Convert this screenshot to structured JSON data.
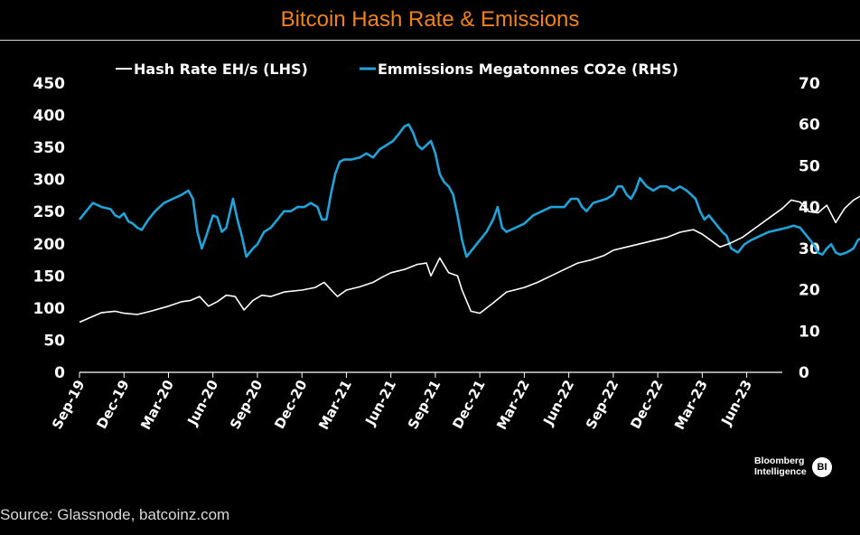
{
  "chart_data": {
    "type": "line",
    "title": "Bitcoin Hash Rate & Emissions",
    "source": "Source: Glassnode, batcoinz.com",
    "brand": {
      "line1": "Bloomberg",
      "line2": "Intelligence",
      "badge": "BI"
    },
    "x_tick_labels": [
      "Sep-19",
      "Dec-19",
      "Mar-20",
      "Jun-20",
      "Sep-20",
      "Dec-20",
      "Mar-21",
      "Jun-21",
      "Sep-21",
      "Dec-21",
      "Mar-22",
      "Jun-22",
      "Sep-22",
      "Dec-22",
      "Mar-23",
      "Jun-23"
    ],
    "y_left": {
      "ticks": [
        "0",
        "50",
        "100",
        "150",
        "200",
        "250",
        "300",
        "350",
        "400",
        "450"
      ],
      "lim": [
        0,
        450
      ]
    },
    "y_right": {
      "ticks": [
        "0",
        "10",
        "20",
        "30",
        "40",
        "50",
        "60",
        "70"
      ],
      "lim": [
        0,
        70
      ]
    },
    "grid": false,
    "legend_placement": "top",
    "colors": {
      "hash": "#ffffff",
      "emissions": "#1fa3d8",
      "title": "#f0821e"
    },
    "series": [
      {
        "name": "Hash Rate EH/s (LHS)",
        "axis": "left",
        "points": [
          [
            0,
            78
          ],
          [
            0.3,
            87
          ],
          [
            0.5,
            93
          ],
          [
            0.8,
            95
          ],
          [
            1,
            92
          ],
          [
            1.3,
            90
          ],
          [
            1.6,
            95
          ],
          [
            2,
            103
          ],
          [
            2.3,
            110
          ],
          [
            2.5,
            112
          ],
          [
            2.7,
            118
          ],
          [
            2.9,
            103
          ],
          [
            3.1,
            110
          ],
          [
            3.3,
            120
          ],
          [
            3.5,
            118
          ],
          [
            3.7,
            97
          ],
          [
            3.9,
            112
          ],
          [
            4.1,
            120
          ],
          [
            4.3,
            118
          ],
          [
            4.6,
            125
          ],
          [
            5,
            128
          ],
          [
            5.3,
            132
          ],
          [
            5.5,
            140
          ],
          [
            5.7,
            125
          ],
          [
            5.8,
            118
          ],
          [
            6,
            128
          ],
          [
            6.3,
            133
          ],
          [
            6.6,
            140
          ],
          [
            6.8,
            148
          ],
          [
            7,
            155
          ],
          [
            7.3,
            160
          ],
          [
            7.6,
            168
          ],
          [
            7.8,
            170
          ],
          [
            7.9,
            150
          ],
          [
            8.1,
            178
          ],
          [
            8.3,
            155
          ],
          [
            8.5,
            150
          ],
          [
            8.6,
            128
          ],
          [
            8.8,
            95
          ],
          [
            9,
            92
          ],
          [
            9.3,
            108
          ],
          [
            9.6,
            125
          ],
          [
            10,
            132
          ],
          [
            10.3,
            140
          ],
          [
            10.6,
            150
          ],
          [
            10.9,
            160
          ],
          [
            11.2,
            170
          ],
          [
            11.5,
            175
          ],
          [
            11.8,
            182
          ],
          [
            12,
            190
          ],
          [
            12.3,
            195
          ],
          [
            12.6,
            200
          ],
          [
            12.9,
            205
          ],
          [
            13.2,
            210
          ],
          [
            13.5,
            218
          ],
          [
            13.8,
            222
          ],
          [
            14,
            215
          ],
          [
            14.2,
            205
          ],
          [
            14.4,
            195
          ],
          [
            14.6,
            200
          ],
          [
            14.9,
            210
          ],
          [
            15.2,
            225
          ],
          [
            15.5,
            240
          ],
          [
            15.8,
            255
          ],
          [
            16,
            268
          ],
          [
            16.2,
            265
          ],
          [
            16.4,
            250
          ],
          [
            16.6,
            248
          ],
          [
            16.8,
            260
          ],
          [
            17,
            233
          ],
          [
            17.2,
            255
          ],
          [
            17.4,
            268
          ],
          [
            17.7,
            280
          ],
          [
            18,
            295
          ],
          [
            18.3,
            305
          ],
          [
            18.6,
            325
          ],
          [
            18.9,
            340
          ],
          [
            19.2,
            350
          ],
          [
            19.5,
            362
          ],
          [
            19.8,
            372
          ],
          [
            20.1,
            380
          ],
          [
            20.3,
            370
          ],
          [
            20.5,
            382
          ],
          [
            20.6,
            388
          ],
          [
            20.7,
            372
          ],
          [
            20.8,
            375
          ]
        ]
      },
      {
        "name": "Emmissions Megatonnes CO2e (RHS)",
        "axis": "right",
        "points": [
          [
            0,
            37
          ],
          [
            0.15,
            39
          ],
          [
            0.3,
            41
          ],
          [
            0.5,
            40
          ],
          [
            0.7,
            39.5
          ],
          [
            0.8,
            38
          ],
          [
            0.9,
            37.5
          ],
          [
            1,
            38.5
          ],
          [
            1.1,
            36.5
          ],
          [
            1.2,
            36
          ],
          [
            1.3,
            35
          ],
          [
            1.4,
            34.5
          ],
          [
            1.55,
            37
          ],
          [
            1.7,
            39
          ],
          [
            1.9,
            41
          ],
          [
            2.1,
            42
          ],
          [
            2.3,
            43
          ],
          [
            2.45,
            44
          ],
          [
            2.55,
            42
          ],
          [
            2.65,
            34
          ],
          [
            2.75,
            30
          ],
          [
            2.85,
            33
          ],
          [
            3,
            38
          ],
          [
            3.1,
            37.5
          ],
          [
            3.2,
            34
          ],
          [
            3.3,
            35
          ],
          [
            3.45,
            42
          ],
          [
            3.55,
            37
          ],
          [
            3.65,
            33
          ],
          [
            3.75,
            28
          ],
          [
            3.9,
            30
          ],
          [
            4,
            31
          ],
          [
            4.15,
            34
          ],
          [
            4.3,
            35
          ],
          [
            4.45,
            37
          ],
          [
            4.6,
            39
          ],
          [
            4.75,
            39
          ],
          [
            4.9,
            40
          ],
          [
            5.05,
            40
          ],
          [
            5.2,
            41
          ],
          [
            5.35,
            40
          ],
          [
            5.45,
            37
          ],
          [
            5.55,
            37
          ],
          [
            5.65,
            43
          ],
          [
            5.75,
            48
          ],
          [
            5.85,
            51
          ],
          [
            5.95,
            51.5
          ],
          [
            6.1,
            51.5
          ],
          [
            6.3,
            52
          ],
          [
            6.45,
            53
          ],
          [
            6.6,
            52
          ],
          [
            6.75,
            54
          ],
          [
            6.9,
            55
          ],
          [
            7.05,
            56
          ],
          [
            7.2,
            58
          ],
          [
            7.3,
            59.5
          ],
          [
            7.4,
            60
          ],
          [
            7.5,
            58
          ],
          [
            7.6,
            55
          ],
          [
            7.7,
            54
          ],
          [
            7.8,
            55
          ],
          [
            7.9,
            56
          ],
          [
            8,
            53
          ],
          [
            8.1,
            48
          ],
          [
            8.2,
            46
          ],
          [
            8.3,
            45
          ],
          [
            8.4,
            43
          ],
          [
            8.5,
            38
          ],
          [
            8.6,
            32
          ],
          [
            8.7,
            28
          ],
          [
            8.85,
            30
          ],
          [
            9,
            32
          ],
          [
            9.15,
            34
          ],
          [
            9.3,
            37
          ],
          [
            9.4,
            40
          ],
          [
            9.5,
            35
          ],
          [
            9.6,
            34
          ],
          [
            9.8,
            35
          ],
          [
            10,
            36
          ],
          [
            10.2,
            38
          ],
          [
            10.4,
            39
          ],
          [
            10.6,
            40
          ],
          [
            10.75,
            40
          ],
          [
            10.9,
            40
          ],
          [
            11.05,
            42
          ],
          [
            11.2,
            42
          ],
          [
            11.3,
            40
          ],
          [
            11.4,
            39
          ],
          [
            11.55,
            41
          ],
          [
            11.7,
            41.5
          ],
          [
            11.85,
            42
          ],
          [
            12,
            43
          ],
          [
            12.1,
            45
          ],
          [
            12.2,
            45
          ],
          [
            12.3,
            43
          ],
          [
            12.4,
            42
          ],
          [
            12.5,
            44
          ],
          [
            12.6,
            47
          ],
          [
            12.75,
            45
          ],
          [
            12.9,
            44
          ],
          [
            13.05,
            45
          ],
          [
            13.2,
            45
          ],
          [
            13.35,
            44
          ],
          [
            13.5,
            45
          ],
          [
            13.65,
            44
          ],
          [
            13.75,
            43
          ],
          [
            13.85,
            42
          ],
          [
            13.95,
            39
          ],
          [
            14.05,
            37
          ],
          [
            14.15,
            38
          ],
          [
            14.3,
            36
          ],
          [
            14.45,
            34
          ],
          [
            14.55,
            33
          ],
          [
            14.65,
            30
          ],
          [
            14.8,
            29
          ],
          [
            14.95,
            31
          ],
          [
            15.1,
            32
          ],
          [
            15.3,
            33
          ],
          [
            15.5,
            34
          ],
          [
            15.7,
            34.5
          ],
          [
            15.9,
            35
          ],
          [
            16.05,
            35.5
          ],
          [
            16.2,
            35
          ],
          [
            16.35,
            33
          ],
          [
            16.5,
            31
          ],
          [
            16.6,
            29
          ],
          [
            16.7,
            28.5
          ],
          [
            16.8,
            30
          ],
          [
            16.9,
            31
          ],
          [
            17,
            29
          ],
          [
            17.1,
            28.5
          ],
          [
            17.25,
            29
          ],
          [
            17.4,
            30
          ],
          [
            17.5,
            32
          ],
          [
            17.65,
            33
          ],
          [
            17.8,
            34
          ],
          [
            17.95,
            35
          ],
          [
            18.1,
            35
          ],
          [
            18.25,
            35.5
          ],
          [
            18.4,
            35
          ],
          [
            18.55,
            35
          ],
          [
            18.7,
            37
          ],
          [
            18.8,
            39
          ],
          [
            18.9,
            38
          ],
          [
            19.05,
            34
          ],
          [
            19.2,
            37
          ],
          [
            19.35,
            38
          ],
          [
            19.5,
            38
          ],
          [
            19.7,
            38.5
          ],
          [
            19.85,
            38
          ],
          [
            19.95,
            36
          ],
          [
            20.05,
            35
          ],
          [
            20.15,
            37
          ],
          [
            20.25,
            40
          ],
          [
            20.35,
            42
          ],
          [
            20.45,
            41
          ],
          [
            20.55,
            40
          ],
          [
            20.7,
            39
          ]
        ]
      }
    ]
  }
}
